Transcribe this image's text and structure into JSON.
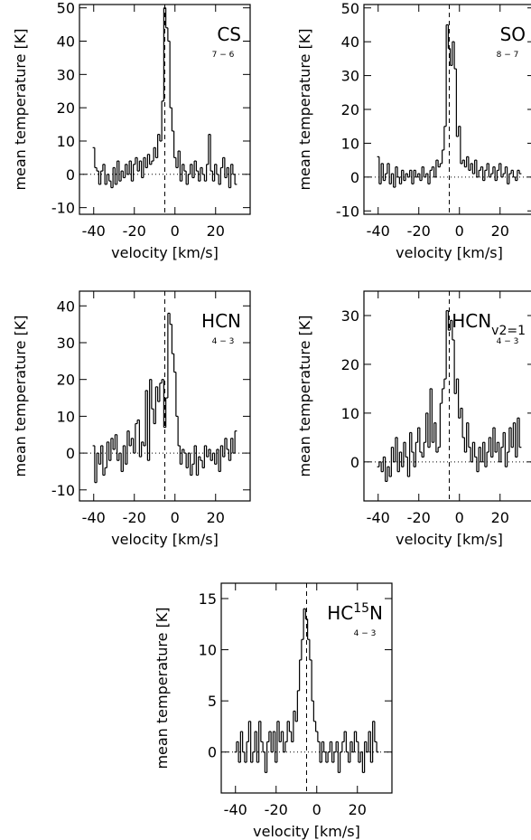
{
  "chart_data": [
    {
      "type": "step",
      "species_parts": [
        {
          "text": "CS"
        }
      ],
      "transition": "7 − 6",
      "xlabel": "velocity [km/s]",
      "ylabel": "mean temperature  [K]",
      "xlim": [
        -47,
        37
      ],
      "ylim": [
        -12,
        51
      ],
      "xticks": [
        -40,
        -20,
        0,
        20
      ],
      "yticks": [
        -10,
        0,
        10,
        20,
        30,
        40,
        50
      ],
      "vline": -5,
      "hline": 0,
      "color": "#000000",
      "x": [
        -40,
        -39,
        -38,
        -37,
        -36,
        -35,
        -34,
        -33,
        -32,
        -31,
        -30,
        -29,
        -28,
        -27,
        -26,
        -25,
        -24,
        -23,
        -22,
        -21,
        -20,
        -19,
        -18,
        -17,
        -16,
        -15,
        -14,
        -13,
        -12,
        -11,
        -10,
        -9,
        -8,
        -7,
        -6,
        -5,
        -4,
        -3,
        -2,
        -1,
        0,
        1,
        2,
        3,
        4,
        5,
        6,
        7,
        8,
        9,
        10,
        11,
        12,
        13,
        14,
        15,
        16,
        17,
        18,
        19,
        20,
        21,
        22,
        23,
        24,
        25,
        26,
        27,
        28,
        29,
        30
      ],
      "values": [
        8,
        2,
        1,
        -3,
        1,
        3,
        -3,
        0,
        -2,
        -4,
        2,
        -3,
        4,
        -2,
        1,
        -1,
        3,
        0,
        4,
        -2,
        3,
        5,
        1,
        4,
        -1,
        5,
        2,
        6,
        3,
        4,
        8,
        5,
        12,
        10,
        22,
        50,
        44,
        40,
        20,
        13,
        5,
        2,
        7,
        -2,
        3,
        1,
        -3,
        0,
        3,
        -1,
        4,
        1,
        -2,
        2,
        0,
        -2,
        3,
        12,
        1,
        -2,
        3,
        0,
        -3,
        2,
        5,
        -1,
        2,
        -4,
        3,
        0,
        -3
      ]
    },
    {
      "type": "step",
      "species_parts": [
        {
          "text": "SO"
        }
      ],
      "transition": "8 − 7",
      "xlabel": "velocity [km/s]",
      "ylabel": "mean temperature  [K]",
      "xlim": [
        -47,
        37
      ],
      "ylim": [
        -11,
        51
      ],
      "xticks": [
        -40,
        -20,
        0,
        20
      ],
      "yticks": [
        -10,
        0,
        10,
        20,
        30,
        40,
        50
      ],
      "vline": -5,
      "hline": 0,
      "color": "#000000",
      "x": [
        -40,
        -39,
        -38,
        -37,
        -36,
        -35,
        -34,
        -33,
        -32,
        -31,
        -30,
        -29,
        -28,
        -27,
        -26,
        -25,
        -24,
        -23,
        -22,
        -21,
        -20,
        -19,
        -18,
        -17,
        -16,
        -15,
        -14,
        -13,
        -12,
        -11,
        -10,
        -9,
        -8,
        -7,
        -6,
        -5,
        -4,
        -3,
        -2,
        -1,
        0,
        1,
        2,
        3,
        4,
        5,
        6,
        7,
        8,
        9,
        10,
        11,
        12,
        13,
        14,
        15,
        16,
        17,
        18,
        19,
        20,
        21,
        22,
        23,
        24,
        25,
        26,
        27,
        28,
        29,
        30
      ],
      "values": [
        6,
        -2,
        4,
        -1,
        1,
        4,
        -2,
        1,
        -3,
        3,
        0,
        -2,
        2,
        -1,
        1,
        0,
        2,
        -2,
        2,
        0,
        1,
        -1,
        3,
        0,
        1,
        -2,
        2,
        3,
        0,
        5,
        3,
        4,
        8,
        15,
        45,
        38,
        33,
        40,
        32,
        12,
        15,
        4,
        5,
        3,
        6,
        2,
        4,
        1,
        5,
        0,
        2,
        3,
        -1,
        2,
        4,
        0,
        1,
        3,
        -1,
        2,
        4,
        0,
        1,
        3,
        -2,
        1,
        2,
        0,
        -1,
        2,
        1
      ]
    },
    {
      "type": "step",
      "species_parts": [
        {
          "text": "HCN"
        }
      ],
      "transition": "4 − 3",
      "xlabel": "velocity [km/s]",
      "ylabel": "mean temperature  [K]",
      "xlim": [
        -47,
        37
      ],
      "ylim": [
        -13,
        44
      ],
      "xticks": [
        -40,
        -20,
        0,
        20
      ],
      "yticks": [
        -10,
        0,
        10,
        20,
        30,
        40
      ],
      "vline": -5,
      "hline": 0,
      "color": "#000000",
      "x": [
        -40,
        -39,
        -38,
        -37,
        -36,
        -35,
        -34,
        -33,
        -32,
        -31,
        -30,
        -29,
        -28,
        -27,
        -26,
        -25,
        -24,
        -23,
        -22,
        -21,
        -20,
        -19,
        -18,
        -17,
        -16,
        -15,
        -14,
        -13,
        -12,
        -11,
        -10,
        -9,
        -8,
        -7,
        -6,
        -5,
        -4,
        -3,
        -2,
        -1,
        0,
        1,
        2,
        3,
        4,
        5,
        6,
        7,
        8,
        9,
        10,
        11,
        12,
        13,
        14,
        15,
        16,
        17,
        18,
        19,
        20,
        21,
        22,
        23,
        24,
        25,
        26,
        27,
        28,
        29,
        30
      ],
      "values": [
        2,
        -8,
        0,
        -3,
        2,
        -6,
        -4,
        3,
        -2,
        4,
        1,
        5,
        -2,
        0,
        -5,
        2,
        -3,
        6,
        2,
        4,
        0,
        8,
        9,
        -1,
        3,
        2,
        17,
        -2,
        20,
        12,
        8,
        18,
        14,
        19,
        20,
        7,
        15,
        38,
        35,
        27,
        22,
        10,
        2,
        -3,
        1,
        0,
        -4,
        0,
        -6,
        -3,
        2,
        -6,
        -1,
        -2,
        -4,
        2,
        -1,
        1,
        -2,
        0,
        -3,
        1,
        -5,
        2,
        -1,
        4,
        1,
        -2,
        4,
        0,
        6
      ]
    },
    {
      "type": "step",
      "species_parts": [
        {
          "text": "HCN"
        },
        {
          "text": "v2=1",
          "style": "sub"
        }
      ],
      "transition": "4 − 3",
      "xlabel": "velocity [km/s]",
      "ylabel": "mean temperature  [K]",
      "xlim": [
        -47,
        37
      ],
      "ylim": [
        -8,
        35
      ],
      "xticks": [
        -40,
        -20,
        0,
        20
      ],
      "yticks": [
        0,
        10,
        20,
        30
      ],
      "vline": -5,
      "hline": 0,
      "color": "#000000",
      "x": [
        -40,
        -39,
        -38,
        -37,
        -36,
        -35,
        -34,
        -33,
        -32,
        -31,
        -30,
        -29,
        -28,
        -27,
        -26,
        -25,
        -24,
        -23,
        -22,
        -21,
        -20,
        -19,
        -18,
        -17,
        -16,
        -15,
        -14,
        -13,
        -12,
        -11,
        -10,
        -9,
        -8,
        -7,
        -6,
        -5,
        -4,
        -3,
        -2,
        -1,
        0,
        1,
        2,
        3,
        4,
        5,
        6,
        7,
        8,
        9,
        10,
        11,
        12,
        13,
        14,
        15,
        16,
        17,
        18,
        19,
        20,
        21,
        22,
        23,
        24,
        25,
        26,
        27,
        28,
        29,
        30
      ],
      "values": [
        -1,
        0,
        -2,
        1,
        -4,
        -1,
        -3,
        3,
        0,
        5,
        -2,
        2,
        -1,
        4,
        1,
        -3,
        6,
        2,
        -1,
        4,
        7,
        2,
        1,
        4,
        10,
        3,
        15,
        4,
        8,
        2,
        3,
        12,
        15,
        17,
        31,
        27,
        29,
        25,
        14,
        17,
        9,
        11,
        5,
        2,
        8,
        3,
        0,
        4,
        1,
        -2,
        3,
        0,
        4,
        -1,
        2,
        5,
        1,
        7,
        2,
        4,
        0,
        3,
        6,
        -1,
        2,
        7,
        3,
        8,
        1,
        9,
        3
      ]
    },
    {
      "type": "step",
      "species_parts": [
        {
          "text": "HC"
        },
        {
          "text": "15",
          "style": "sup"
        },
        {
          "text": "N"
        }
      ],
      "transition": "4 − 3",
      "xlabel": "velocity [km/s]",
      "ylabel": "mean temperature  [K]",
      "xlim": [
        -47,
        37
      ],
      "ylim": [
        -4,
        16.5
      ],
      "xticks": [
        -40,
        -20,
        0,
        20
      ],
      "yticks": [
        0,
        5,
        10,
        15
      ],
      "vline": -5,
      "hline": 0,
      "color": "#000000",
      "x": [
        -40,
        -39,
        -38,
        -37,
        -36,
        -35,
        -34,
        -33,
        -32,
        -31,
        -30,
        -29,
        -28,
        -27,
        -26,
        -25,
        -24,
        -23,
        -22,
        -21,
        -20,
        -19,
        -18,
        -17,
        -16,
        -15,
        -14,
        -13,
        -12,
        -11,
        -10,
        -9,
        -8,
        -7,
        -6,
        -5,
        -4,
        -3,
        -2,
        -1,
        0,
        1,
        2,
        3,
        4,
        5,
        6,
        7,
        8,
        9,
        10,
        11,
        12,
        13,
        14,
        15,
        16,
        17,
        18,
        19,
        20,
        21,
        22,
        23,
        24,
        25,
        26,
        27,
        28,
        29,
        30
      ],
      "values": [
        0,
        1,
        -1,
        2,
        0,
        -1,
        1,
        3,
        -1,
        0,
        2,
        -1,
        3,
        1,
        0,
        -2,
        1,
        2,
        0,
        2,
        -1,
        3,
        1,
        2,
        0,
        1,
        3,
        2,
        1,
        4,
        3,
        6,
        9,
        11,
        14,
        13,
        11,
        9,
        5,
        3,
        2,
        1,
        -1,
        1,
        0,
        -1,
        0,
        1,
        -1,
        0,
        1,
        -2,
        0,
        1,
        2,
        0,
        -1,
        1,
        0,
        2,
        1,
        -1,
        0,
        -2,
        1,
        0,
        2,
        -1,
        3,
        1,
        0
      ]
    }
  ]
}
